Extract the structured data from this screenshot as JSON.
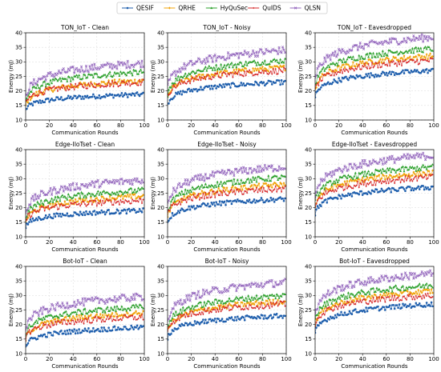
{
  "legend": [
    "QESIF",
    "QRHE",
    "HyQuSec",
    "QuIDS",
    "QLSN"
  ],
  "chart_data": [
    {
      "type": "line",
      "title": "TON_IoT - Clean",
      "xlabel": "Communication Rounds",
      "ylabel": "Energy (mJ)",
      "xlim": [
        0,
        100
      ],
      "ylim": [
        10,
        40
      ],
      "xticks": [
        0,
        20,
        40,
        60,
        80,
        100
      ],
      "yticks": [
        10,
        15,
        20,
        25,
        30,
        35,
        40
      ],
      "series": [
        {
          "name": "QESIF",
          "start": 13.5,
          "end": 18.8
        },
        {
          "name": "QRHE",
          "start": 15.0,
          "end": 23.5
        },
        {
          "name": "HyQuSec",
          "start": 16.5,
          "end": 26.5
        },
        {
          "name": "QuIDS",
          "start": 15.5,
          "end": 23.0
        },
        {
          "name": "QLSN",
          "start": 18.0,
          "end": 29.5
        }
      ]
    },
    {
      "type": "line",
      "title": "TON_IoT - Noisy",
      "xlabel": "Communication Rounds",
      "ylabel": "Energy (mJ)",
      "xlim": [
        0,
        100
      ],
      "ylim": [
        10,
        40
      ],
      "xticks": [
        0,
        20,
        40,
        60,
        80,
        100
      ],
      "yticks": [
        10,
        15,
        20,
        25,
        30,
        35,
        40
      ],
      "series": [
        {
          "name": "QESIF",
          "start": 15.5,
          "end": 23.0
        },
        {
          "name": "QRHE",
          "start": 17.5,
          "end": 28.0
        },
        {
          "name": "HyQuSec",
          "start": 19.0,
          "end": 30.5
        },
        {
          "name": "QuIDS",
          "start": 18.0,
          "end": 27.0
        },
        {
          "name": "QLSN",
          "start": 21.0,
          "end": 34.0
        }
      ]
    },
    {
      "type": "line",
      "title": "TON_IoT - Eavesdropped",
      "xlabel": "Communication Rounds",
      "ylabel": "Energy (mJ)",
      "xlim": [
        0,
        100
      ],
      "ylim": [
        10,
        40
      ],
      "xticks": [
        0,
        20,
        40,
        60,
        80,
        100
      ],
      "yticks": [
        10,
        15,
        20,
        25,
        30,
        35,
        40
      ],
      "series": [
        {
          "name": "QESIF",
          "start": 18.0,
          "end": 27.0
        },
        {
          "name": "QRHE",
          "start": 20.5,
          "end": 32.0
        },
        {
          "name": "HyQuSec",
          "start": 22.0,
          "end": 34.5
        },
        {
          "name": "QuIDS",
          "start": 20.0,
          "end": 30.5
        },
        {
          "name": "QLSN",
          "start": 24.0,
          "end": 38.5
        }
      ]
    },
    {
      "type": "line",
      "title": "Edge-IIoTset - Clean",
      "xlabel": "Communication Rounds",
      "ylabel": "Energy (mJ)",
      "xlim": [
        0,
        100
      ],
      "ylim": [
        10,
        40
      ],
      "xticks": [
        0,
        20,
        40,
        60,
        80,
        100
      ],
      "yticks": [
        10,
        15,
        20,
        25,
        30,
        35,
        40
      ],
      "series": [
        {
          "name": "QESIF",
          "start": 13.5,
          "end": 19.0
        },
        {
          "name": "QRHE",
          "start": 15.0,
          "end": 24.0
        },
        {
          "name": "HyQuSec",
          "start": 16.5,
          "end": 26.0
        },
        {
          "name": "QuIDS",
          "start": 15.5,
          "end": 22.5
        },
        {
          "name": "QLSN",
          "start": 18.5,
          "end": 29.5
        }
      ]
    },
    {
      "type": "line",
      "title": "Edge-IIoTset - Noisy",
      "xlabel": "Communication Rounds",
      "ylabel": "Energy (mJ)",
      "xlim": [
        0,
        100
      ],
      "ylim": [
        10,
        40
      ],
      "xticks": [
        0,
        20,
        40,
        60,
        80,
        100
      ],
      "yticks": [
        10,
        15,
        20,
        25,
        30,
        35,
        40
      ],
      "series": [
        {
          "name": "QESIF",
          "start": 15.0,
          "end": 23.0
        },
        {
          "name": "QRHE",
          "start": 17.0,
          "end": 28.0
        },
        {
          "name": "HyQuSec",
          "start": 18.5,
          "end": 30.5
        },
        {
          "name": "QuIDS",
          "start": 17.5,
          "end": 26.5
        },
        {
          "name": "QLSN",
          "start": 21.0,
          "end": 34.0
        }
      ]
    },
    {
      "type": "line",
      "title": "Edge-IIoTset - Eavesdropped",
      "xlabel": "Communication Rounds",
      "ylabel": "Energy (mJ)",
      "xlim": [
        0,
        100
      ],
      "ylim": [
        10,
        40
      ],
      "xticks": [
        0,
        20,
        40,
        60,
        80,
        100
      ],
      "yticks": [
        10,
        15,
        20,
        25,
        30,
        35,
        40
      ],
      "series": [
        {
          "name": "QESIF",
          "start": 18.0,
          "end": 27.0
        },
        {
          "name": "QRHE",
          "start": 20.5,
          "end": 32.0
        },
        {
          "name": "HyQuSec",
          "start": 22.0,
          "end": 34.0
        },
        {
          "name": "QuIDS",
          "start": 20.0,
          "end": 30.5
        },
        {
          "name": "QLSN",
          "start": 24.0,
          "end": 38.0
        }
      ]
    },
    {
      "type": "line",
      "title": "Bot-IoT - Clean",
      "xlabel": "Communication Rounds",
      "ylabel": "Energy (mJ)",
      "xlim": [
        0,
        100
      ],
      "ylim": [
        10,
        40
      ],
      "xticks": [
        0,
        20,
        40,
        60,
        80,
        100
      ],
      "yticks": [
        10,
        15,
        20,
        25,
        30,
        35,
        40
      ],
      "series": [
        {
          "name": "QESIF",
          "start": 12.5,
          "end": 19.0
        },
        {
          "name": "QRHE",
          "start": 15.0,
          "end": 24.0
        },
        {
          "name": "HyQuSec",
          "start": 16.5,
          "end": 26.0
        },
        {
          "name": "QuIDS",
          "start": 15.5,
          "end": 22.5
        },
        {
          "name": "QLSN",
          "start": 18.5,
          "end": 29.5
        }
      ]
    },
    {
      "type": "line",
      "title": "Bot-IoT - Noisy",
      "xlabel": "Communication Rounds",
      "ylabel": "Energy (mJ)",
      "xlim": [
        0,
        100
      ],
      "ylim": [
        10,
        40
      ],
      "xticks": [
        0,
        20,
        40,
        60,
        80,
        100
      ],
      "yticks": [
        10,
        15,
        20,
        25,
        30,
        35,
        40
      ],
      "series": [
        {
          "name": "QESIF",
          "start": 15.5,
          "end": 23.0
        },
        {
          "name": "QRHE",
          "start": 17.5,
          "end": 28.0
        },
        {
          "name": "HyQuSec",
          "start": 19.0,
          "end": 30.0
        },
        {
          "name": "QuIDS",
          "start": 18.0,
          "end": 27.0
        },
        {
          "name": "QLSN",
          "start": 21.0,
          "end": 34.5
        }
      ]
    },
    {
      "type": "line",
      "title": "Bot-IoT - Eavesdropped",
      "xlabel": "Communication Rounds",
      "ylabel": "Energy (mJ)",
      "xlim": [
        0,
        100
      ],
      "ylim": [
        10,
        40
      ],
      "xticks": [
        0,
        20,
        40,
        60,
        80,
        100
      ],
      "yticks": [
        10,
        15,
        20,
        25,
        30,
        35,
        40
      ],
      "series": [
        {
          "name": "QESIF",
          "start": 17.0,
          "end": 27.0
        },
        {
          "name": "QRHE",
          "start": 20.0,
          "end": 31.5
        },
        {
          "name": "HyQuSec",
          "start": 21.5,
          "end": 33.5
        },
        {
          "name": "QuIDS",
          "start": 20.0,
          "end": 30.0
        },
        {
          "name": "QLSN",
          "start": 23.5,
          "end": 37.5
        }
      ]
    }
  ],
  "colors": {
    "QESIF": "#1f5fad",
    "QRHE": "#f0a30a",
    "HyQuSec": "#2ca02c",
    "QuIDS": "#d62728",
    "QLSN": "#9467bd"
  },
  "markers": {
    "QESIF": "circle",
    "QRHE": "diamond",
    "HyQuSec": "triangle",
    "QuIDS": "diamond-small",
    "QLSN": "cross"
  }
}
